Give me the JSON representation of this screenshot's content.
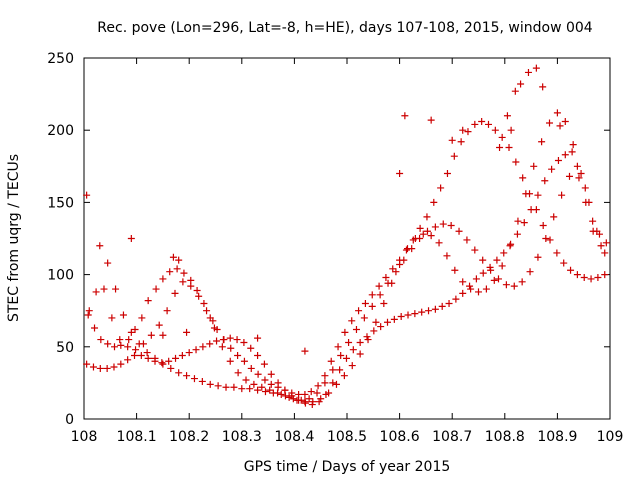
{
  "chart_data": {
    "type": "scatter",
    "title": "Rec. pove (Lon=296, Lat=-8, h=HE), days 107-108, 2015, window 004",
    "xlabel": "GPS time / Days of year 2015",
    "ylabel": "STEC from uqrg / TECUs",
    "xlim": [
      108,
      109
    ],
    "ylim": [
      0,
      250
    ],
    "xticks": [
      108,
      108.1,
      108.2,
      108.3,
      108.4,
      108.5,
      108.6,
      108.7,
      108.8,
      108.9,
      109
    ],
    "xtick_labels": [
      "108",
      "108.1",
      "108.2",
      "108.3",
      "108.4",
      "108.5",
      "108.6",
      "108.7",
      "108.8",
      "108.9",
      "109"
    ],
    "yticks": [
      0,
      50,
      100,
      150,
      200,
      250
    ],
    "ytick_labels": [
      "0",
      "50",
      "100",
      "150",
      "200",
      "250"
    ],
    "grid": false,
    "marker": "plus",
    "marker_color": "#cc0000",
    "series": [
      {
        "x": [
          108.005,
          108.01,
          108.02,
          108.032,
          108.045,
          108.058,
          108.07,
          108.085,
          108.097,
          108.11,
          108.122,
          108.137,
          108.15,
          108.163,
          108.177,
          108.19,
          108.203,
          108.215,
          108.228,
          108.24,
          108.253,
          108.266,
          108.279,
          108.292,
          108.305,
          108.318,
          108.331,
          108.344,
          108.356,
          108.369,
          108.382,
          108.395,
          108.408,
          108.42,
          108.432,
          108.445,
          108.458,
          108.47,
          108.483,
          108.496,
          108.509,
          108.522,
          108.535,
          108.548,
          108.561,
          108.574,
          108.587,
          108.6,
          108.613,
          108.626,
          108.639,
          108.652,
          108.665,
          108.678,
          108.691,
          108.704,
          108.717,
          108.73,
          108.743,
          108.756,
          108.769,
          108.782,
          108.795,
          108.808,
          108.821,
          108.834,
          108.847,
          108.86,
          108.873,
          108.886,
          108.899,
          108.912,
          108.925,
          108.938,
          108.951,
          108.964,
          108.977,
          108.99
        ],
        "y": [
          155,
          75,
          63,
          55,
          52,
          50,
          51,
          55,
          62,
          70,
          82,
          90,
          97,
          102,
          104,
          101,
          96,
          89,
          80,
          70,
          62,
          55,
          49,
          44,
          40,
          35,
          31,
          27,
          24,
          22,
          20,
          18,
          17,
          17,
          19,
          23,
          30,
          40,
          50,
          60,
          68,
          75,
          80,
          86,
          92,
          98,
          104,
          110,
          117,
          124,
          132,
          140,
          150,
          160,
          170,
          182,
          192,
          199,
          204,
          206,
          204,
          200,
          195,
          188,
          178,
          167,
          156,
          145,
          134,
          124,
          115,
          108,
          103,
          100,
          98,
          97,
          98,
          100
        ]
      },
      {
        "x": [
          108.005,
          108.018,
          108.031,
          108.044,
          108.057,
          108.07,
          108.083,
          108.096,
          108.109,
          108.122,
          108.135,
          108.148,
          108.161,
          108.174,
          108.187,
          108.2,
          108.213,
          108.226,
          108.239,
          108.252,
          108.265,
          108.278,
          108.291,
          108.304,
          108.317,
          108.33,
          108.343,
          108.356,
          108.369,
          108.382,
          108.395,
          108.408,
          108.421,
          108.434,
          108.447,
          108.46,
          108.473,
          108.486,
          108.499,
          108.512,
          108.525,
          108.538,
          108.551,
          108.564,
          108.577,
          108.59,
          108.603,
          108.616,
          108.629,
          108.642,
          108.655,
          108.668,
          108.681,
          108.694,
          108.707,
          108.72,
          108.733,
          108.746,
          108.759,
          108.772,
          108.785,
          108.798,
          108.811,
          108.824,
          108.837,
          108.85,
          108.863,
          108.876,
          108.889,
          108.902,
          108.915,
          108.928,
          108.941,
          108.954,
          108.967,
          108.98,
          108.993
        ],
        "y": [
          38,
          36,
          35,
          35,
          36,
          38,
          41,
          44,
          44,
          42,
          40,
          39,
          40,
          42,
          44,
          46,
          48,
          50,
          52,
          54,
          55,
          56,
          55,
          53,
          49,
          44,
          38,
          31,
          25,
          20,
          16,
          13,
          11,
          10,
          12,
          17,
          25,
          34,
          42,
          48,
          53,
          57,
          61,
          64,
          67,
          69,
          71,
          72,
          73,
          74,
          75,
          76,
          78,
          80,
          83,
          87,
          92,
          97,
          101,
          105,
          110,
          115,
          121,
          128,
          136,
          145,
          155,
          165,
          173,
          179,
          183,
          185,
          167,
          150,
          137,
          128,
          122
        ]
      },
      {
        "x": [
          108.008,
          108.023,
          108.038,
          108.053,
          108.068,
          108.083,
          108.098,
          108.113,
          108.128,
          108.143,
          108.158,
          108.173,
          108.188,
          108.203,
          108.218,
          108.233,
          108.248,
          108.263,
          108.278,
          108.293,
          108.308,
          108.323,
          108.338,
          108.353,
          108.368,
          108.383,
          108.398,
          108.413,
          108.428,
          108.443,
          108.458,
          108.473,
          108.488,
          108.503,
          108.518,
          108.533,
          108.548,
          108.563,
          108.578,
          108.593,
          108.608,
          108.623,
          108.638,
          108.653,
          108.668,
          108.683,
          108.698,
          108.713,
          108.728,
          108.743,
          108.758,
          108.773,
          108.788,
          108.803,
          108.818,
          108.833,
          108.848,
          108.863,
          108.878,
          108.893,
          108.908,
          108.923,
          108.938,
          108.953,
          108.968,
          108.983
        ],
        "y": [
          72,
          88,
          90,
          70,
          55,
          50,
          48,
          52,
          58,
          65,
          75,
          87,
          95,
          92,
          85,
          75,
          63,
          50,
          40,
          32,
          27,
          24,
          22,
          20,
          18,
          16,
          14,
          13,
          14,
          18,
          25,
          34,
          44,
          53,
          62,
          70,
          78,
          86,
          94,
          102,
          110,
          118,
          125,
          130,
          133,
          135,
          134,
          130,
          124,
          117,
          110,
          103,
          97,
          93,
          92,
          95,
          102,
          112,
          125,
          140,
          155,
          168,
          175,
          160,
          130,
          120
        ]
      },
      {
        "x": [
          108.03,
          108.045,
          108.06,
          108.075,
          108.09,
          108.105,
          108.12,
          108.135,
          108.15,
          108.165,
          108.18,
          108.195,
          108.21,
          108.225,
          108.24,
          108.255,
          108.27,
          108.285,
          108.3,
          108.315,
          108.33,
          108.345,
          108.36,
          108.375,
          108.39,
          108.405,
          108.42,
          108.435,
          108.45,
          108.465,
          108.48,
          108.495,
          108.51,
          108.525,
          108.54,
          108.555,
          108.57,
          108.585,
          108.6,
          108.615,
          108.63,
          108.645,
          108.66,
          108.675,
          108.69,
          108.705,
          108.72,
          108.735,
          108.75,
          108.765,
          108.78,
          108.795,
          108.81,
          108.825,
          108.84,
          108.855,
          108.87,
          108.885,
          108.9,
          108.915,
          108.93,
          108.945,
          108.96,
          108.975,
          108.99
        ],
        "y": [
          120,
          108,
          90,
          72,
          60,
          52,
          46,
          42,
          38,
          35,
          32,
          30,
          28,
          26,
          24,
          23,
          22,
          22,
          21,
          21,
          20,
          19,
          18,
          17,
          15,
          13,
          12,
          12,
          14,
          18,
          24,
          30,
          37,
          45,
          55,
          67,
          80,
          94,
          107,
          118,
          125,
          128,
          127,
          122,
          113,
          103,
          95,
          90,
          88,
          90,
          96,
          106,
          120,
          137,
          156,
          175,
          192,
          205,
          212,
          206,
          190,
          170,
          150,
          130,
          115
        ]
      },
      {
        "x": [
          108.09,
          108.15,
          108.17,
          108.18,
          108.195,
          108.245,
          108.33,
          108.42,
          108.6,
          108.61,
          108.66,
          108.7,
          108.72,
          108.79,
          108.805,
          108.812,
          108.82,
          108.83,
          108.845,
          108.86,
          108.872,
          108.905
        ],
        "y": [
          125,
          58,
          112,
          110,
          60,
          68,
          56,
          47,
          170,
          210,
          207,
          193,
          200,
          188,
          210,
          200,
          227,
          232,
          240,
          243,
          230,
          203
        ]
      }
    ]
  }
}
